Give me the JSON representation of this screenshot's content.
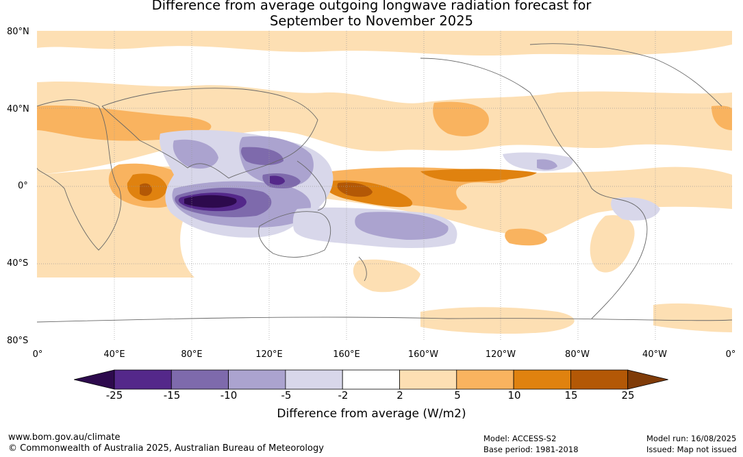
{
  "title_line1": "Difference from average outgoing longwave radiation forecast for",
  "title_line2": "September to November 2025",
  "lat_labels": [
    "80°N",
    "40°N",
    "0°",
    "40°S",
    "80°S"
  ],
  "lon_labels": [
    "0°",
    "40°E",
    "80°E",
    "120°E",
    "160°E",
    "160°W",
    "120°W",
    "80°W",
    "40°W",
    "0°"
  ],
  "legend": {
    "title": "Difference from average (W/m2)",
    "ticks": [
      "-25",
      "-15",
      "-10",
      "-5",
      "-2",
      "2",
      "5",
      "10",
      "15",
      "25"
    ],
    "colors": [
      "#2d0a4d",
      "#54288a",
      "#7e6aac",
      "#aba3cf",
      "#d8d7ea",
      "#ffffff",
      "#fddfb3",
      "#f9b35f",
      "#e0820f",
      "#b35806",
      "#7f3b08"
    ]
  },
  "footer": {
    "url": "www.bom.gov.au/climate",
    "copyright": "© Commonwealth of Australia 2025, Australian Bureau of Meteorology",
    "model": "Model: ACCESS-S2",
    "base_period": "Base period: 1981-2018",
    "model_run": "Model run: 16/08/2025",
    "issued": "Issued: Map not issued"
  }
}
